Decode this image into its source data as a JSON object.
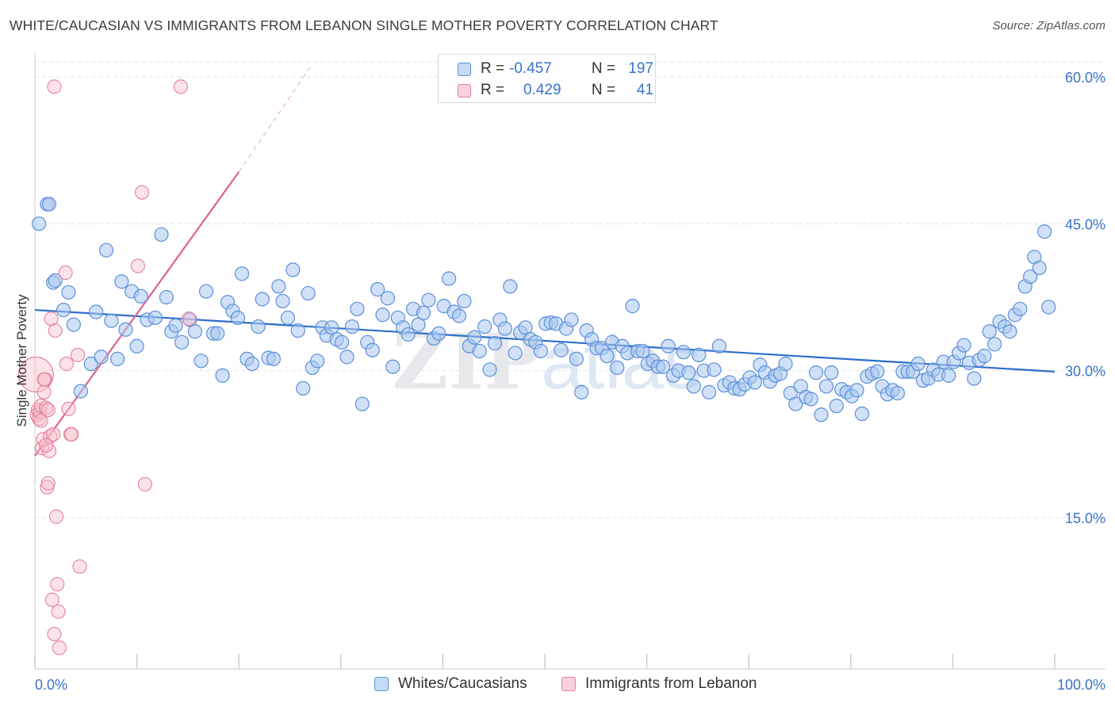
{
  "title": "WHITE/CAUCASIAN VS IMMIGRANTS FROM LEBANON SINGLE MOTHER POVERTY CORRELATION CHART",
  "source": "Source: ZipAtlas.com",
  "watermark": "ZIPatlas",
  "legend": {
    "rows": [
      {
        "r_label": "R =",
        "r_value": "-0.457",
        "n_label": "N =",
        "n_value": "197"
      },
      {
        "r_label": "R =",
        "r_value": "0.429",
        "n_label": "N =",
        "n_value": "41"
      }
    ]
  },
  "colors": {
    "blue_fill": "#aac8f0",
    "blue_stroke": "#5b8fd8",
    "blue_line": "#2c6ecb",
    "pink_fill": "#f6c0cf",
    "pink_stroke": "#e47f9c",
    "pink_line": "#e0608a",
    "tick_text": "#3a72c9",
    "grid": "#e2e2e2"
  },
  "chart_data": {
    "type": "scatter",
    "title": "WHITE/CAUCASIAN VS IMMIGRANTS FROM LEBANON SINGLE MOTHER POVERTY CORRELATION CHART",
    "xlabel": "",
    "ylabel": "Single Mother Poverty",
    "xlim": [
      0,
      100
    ],
    "ylim": [
      0,
      62
    ],
    "x_ticks": [
      "0.0%",
      "100.0%"
    ],
    "y_ticks": [
      {
        "value": 15,
        "label": "15.0%"
      },
      {
        "value": 30,
        "label": "30.0%"
      },
      {
        "value": 45,
        "label": "45.0%"
      },
      {
        "value": 60,
        "label": "60.0%"
      }
    ],
    "grid": true,
    "legend_position": "top-center",
    "series": [
      {
        "name": "Whites/Caucasians",
        "color": "#5b8fd8",
        "R": -0.457,
        "N": 197,
        "trend": {
          "x": [
            0,
            100
          ],
          "y": [
            36.2,
            29.9
          ]
        },
        "points": [
          [
            0.4,
            45
          ],
          [
            1.2,
            47
          ],
          [
            1.4,
            47
          ],
          [
            1.8,
            39
          ],
          [
            2,
            39.2
          ],
          [
            2.8,
            36.2
          ],
          [
            3.3,
            38
          ],
          [
            3.8,
            34.7
          ],
          [
            4.5,
            27.9
          ],
          [
            5.5,
            30.7
          ],
          [
            6,
            36
          ],
          [
            6.5,
            31.4
          ],
          [
            7,
            42.3
          ],
          [
            7.5,
            35.1
          ],
          [
            8.1,
            31.2
          ],
          [
            8.5,
            39.1
          ],
          [
            8.9,
            34.2
          ],
          [
            9.5,
            38.1
          ],
          [
            10,
            32.5
          ],
          [
            10.4,
            37.6
          ],
          [
            11,
            35.2
          ],
          [
            11.8,
            35.4
          ],
          [
            12.4,
            43.9
          ],
          [
            12.9,
            37.5
          ],
          [
            13.4,
            34
          ],
          [
            13.8,
            34.6
          ],
          [
            14.4,
            32.9
          ],
          [
            15.2,
            35.2
          ],
          [
            15.7,
            34
          ],
          [
            16.3,
            31
          ],
          [
            16.8,
            38.1
          ],
          [
            17.5,
            33.8
          ],
          [
            17.9,
            33.8
          ],
          [
            18.4,
            29.5
          ],
          [
            18.9,
            37
          ],
          [
            19.4,
            36.1
          ],
          [
            19.9,
            35.4
          ],
          [
            20.3,
            39.9
          ],
          [
            20.8,
            31.2
          ],
          [
            21.3,
            30.7
          ],
          [
            21.9,
            34.5
          ],
          [
            22.3,
            37.3
          ],
          [
            22.9,
            31.3
          ],
          [
            23.4,
            31.2
          ],
          [
            23.9,
            38.6
          ],
          [
            24.3,
            37.1
          ],
          [
            24.8,
            35.4
          ],
          [
            25.3,
            40.3
          ],
          [
            25.8,
            34.1
          ],
          [
            26.3,
            28.2
          ],
          [
            26.8,
            37.9
          ],
          [
            27.2,
            30.3
          ],
          [
            27.7,
            31
          ],
          [
            28.2,
            34.4
          ],
          [
            28.6,
            33.6
          ],
          [
            29.1,
            34.4
          ],
          [
            29.6,
            33.2
          ],
          [
            30.1,
            32.9
          ],
          [
            30.6,
            31.4
          ],
          [
            31.1,
            34.5
          ],
          [
            31.6,
            36.3
          ],
          [
            32.1,
            26.6
          ],
          [
            32.6,
            32.9
          ],
          [
            33.1,
            32.1
          ],
          [
            33.6,
            38.3
          ],
          [
            34.1,
            35.7
          ],
          [
            34.6,
            37.4
          ],
          [
            35.1,
            30.4
          ],
          [
            35.6,
            35.4
          ],
          [
            36.1,
            34.4
          ],
          [
            36.6,
            33.7
          ],
          [
            37.1,
            36.3
          ],
          [
            37.6,
            34.7
          ],
          [
            38.1,
            35.9
          ],
          [
            38.6,
            37.2
          ],
          [
            39.1,
            33.3
          ],
          [
            39.6,
            33.8
          ],
          [
            40.1,
            36.6
          ],
          [
            40.6,
            39.4
          ],
          [
            41.1,
            36
          ],
          [
            41.6,
            35.6
          ],
          [
            42.1,
            37.1
          ],
          [
            42.6,
            32.5
          ],
          [
            43.1,
            33.4
          ],
          [
            43.6,
            32
          ],
          [
            44.1,
            34.5
          ],
          [
            44.6,
            30.1
          ],
          [
            45.1,
            32.8
          ],
          [
            45.6,
            35.2
          ],
          [
            46.1,
            34.3
          ],
          [
            46.6,
            38.6
          ],
          [
            47.1,
            31.8
          ],
          [
            47.6,
            33.9
          ],
          [
            48.1,
            34.4
          ],
          [
            48.6,
            33.2
          ],
          [
            49.1,
            32.9
          ],
          [
            49.6,
            32
          ],
          [
            50.1,
            34.8
          ],
          [
            50.6,
            34.9
          ],
          [
            51.1,
            34.8
          ],
          [
            51.6,
            32.1
          ],
          [
            52.1,
            34.3
          ],
          [
            52.6,
            35.2
          ],
          [
            53.1,
            31.2
          ],
          [
            53.6,
            27.8
          ],
          [
            54.1,
            34.1
          ],
          [
            54.6,
            33.2
          ],
          [
            55.1,
            32.3
          ],
          [
            55.6,
            32.3
          ],
          [
            56.1,
            31.5
          ],
          [
            56.6,
            32.9
          ],
          [
            57.1,
            30.3
          ],
          [
            57.6,
            32.5
          ],
          [
            58.1,
            31.8
          ],
          [
            58.6,
            36.6
          ],
          [
            59.1,
            32
          ],
          [
            59.6,
            32
          ],
          [
            60.1,
            30.7
          ],
          [
            60.6,
            31
          ],
          [
            61.1,
            30.4
          ],
          [
            61.6,
            30.4
          ],
          [
            62.1,
            32.5
          ],
          [
            62.6,
            29.5
          ],
          [
            63.1,
            30
          ],
          [
            63.6,
            31.9
          ],
          [
            64.1,
            29.8
          ],
          [
            64.6,
            28.4
          ],
          [
            65.1,
            31.6
          ],
          [
            65.6,
            30
          ],
          [
            66.1,
            27.8
          ],
          [
            66.6,
            30.1
          ],
          [
            67.1,
            32.5
          ],
          [
            67.6,
            28.5
          ],
          [
            68.1,
            28.8
          ],
          [
            68.6,
            28.2
          ],
          [
            69.1,
            28.1
          ],
          [
            69.6,
            28.6
          ],
          [
            70.1,
            29.3
          ],
          [
            70.6,
            28.8
          ],
          [
            71.1,
            30.6
          ],
          [
            71.6,
            29.8
          ],
          [
            72.1,
            28.9
          ],
          [
            72.6,
            29.5
          ],
          [
            73.1,
            29.7
          ],
          [
            73.6,
            30.7
          ],
          [
            74.1,
            27.7
          ],
          [
            74.6,
            26.6
          ],
          [
            75.1,
            28.4
          ],
          [
            75.6,
            27.3
          ],
          [
            76.1,
            27.1
          ],
          [
            76.6,
            29.8
          ],
          [
            77.1,
            25.5
          ],
          [
            77.6,
            28.4
          ],
          [
            78.1,
            29.8
          ],
          [
            78.6,
            26.4
          ],
          [
            79.1,
            28.1
          ],
          [
            79.6,
            27.8
          ],
          [
            80.1,
            27.4
          ],
          [
            80.6,
            28
          ],
          [
            81.1,
            25.6
          ],
          [
            81.6,
            29.4
          ],
          [
            82.1,
            29.7
          ],
          [
            82.6,
            29.9
          ],
          [
            83.1,
            28.4
          ],
          [
            83.6,
            27.6
          ],
          [
            84.1,
            28
          ],
          [
            84.6,
            27.7
          ],
          [
            85.1,
            29.9
          ],
          [
            85.6,
            29.9
          ],
          [
            86.1,
            29.9
          ],
          [
            86.6,
            30.7
          ],
          [
            87.1,
            29
          ],
          [
            87.6,
            29.2
          ],
          [
            88.1,
            30.1
          ],
          [
            88.6,
            29.6
          ],
          [
            89.1,
            30.9
          ],
          [
            89.6,
            29.5
          ],
          [
            90.1,
            30.9
          ],
          [
            90.6,
            31.8
          ],
          [
            91.1,
            32.6
          ],
          [
            91.6,
            30.8
          ],
          [
            92.1,
            29.2
          ],
          [
            92.6,
            31.1
          ],
          [
            93.1,
            31.5
          ],
          [
            93.6,
            34
          ],
          [
            94.1,
            32.7
          ],
          [
            94.6,
            35
          ],
          [
            95.1,
            34.5
          ],
          [
            95.6,
            34
          ],
          [
            96.1,
            35.7
          ],
          [
            96.6,
            36.3
          ],
          [
            97.1,
            38.6
          ],
          [
            97.6,
            39.6
          ],
          [
            98,
            41.6
          ],
          [
            98.5,
            40.5
          ],
          [
            99,
            44.2
          ],
          [
            99.4,
            36.5
          ]
        ]
      },
      {
        "name": "Immigrants from Lebanon",
        "color": "#e47f9c",
        "R": 0.429,
        "N": 41,
        "trend_solid": {
          "x": [
            0,
            20
          ],
          "y": [
            21.3,
            50.3
          ]
        },
        "trend_dashed": {
          "x": [
            20,
            27
          ],
          "y": [
            50.3,
            61
          ]
        },
        "points": [
          [
            0.1,
            29.6
          ],
          [
            0.2,
            25.5
          ],
          [
            0.3,
            26
          ],
          [
            0.4,
            25.1
          ],
          [
            0.5,
            25.8
          ],
          [
            0.6,
            26.4
          ],
          [
            0.7,
            22.1
          ],
          [
            0.8,
            23
          ],
          [
            0.9,
            27.8
          ],
          [
            1.0,
            29.1
          ],
          [
            1.1,
            26.2
          ],
          [
            1.2,
            18.1
          ],
          [
            1.3,
            18.5
          ],
          [
            1.4,
            21.8
          ],
          [
            1.5,
            23.3
          ],
          [
            1.6,
            35.3
          ],
          [
            1.8,
            23.5
          ],
          [
            1.9,
            59
          ],
          [
            2.0,
            34.1
          ],
          [
            2.1,
            15.1
          ],
          [
            2.2,
            8.2
          ],
          [
            2.3,
            5.4
          ],
          [
            2.4,
            1.7
          ],
          [
            1.7,
            6.6
          ],
          [
            1.9,
            3.1
          ],
          [
            3.0,
            40
          ],
          [
            3.1,
            30.7
          ],
          [
            3.3,
            26.1
          ],
          [
            3.5,
            23.5
          ],
          [
            4.2,
            31.6
          ],
          [
            4.4,
            10
          ],
          [
            10.1,
            40.7
          ],
          [
            10.5,
            48.2
          ],
          [
            10.8,
            18.4
          ],
          [
            14.3,
            59
          ],
          [
            15.1,
            35.3
          ],
          [
            0.6,
            24.9
          ],
          [
            1.3,
            26
          ],
          [
            0.9,
            29.1
          ],
          [
            1.1,
            22.4
          ],
          [
            3.6,
            23.5
          ]
        ]
      }
    ]
  },
  "bottom_legend": {
    "items": [
      "Whites/Caucasians",
      "Immigrants from Lebanon"
    ]
  }
}
